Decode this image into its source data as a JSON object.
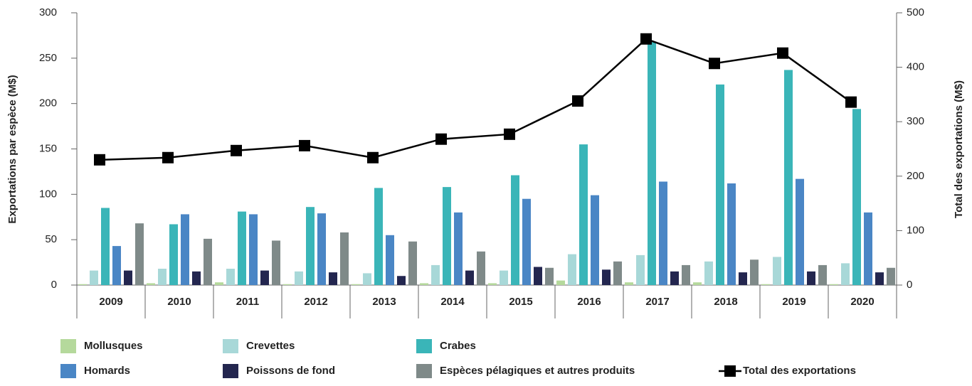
{
  "chart_data": {
    "type": "bar",
    "y_label": "Exportations par espèce (M$)",
    "y2_label": "Total des exportations (M$)",
    "categories": [
      "2009",
      "2010",
      "2011",
      "2012",
      "2013",
      "2014",
      "2015",
      "2016",
      "2017",
      "2018",
      "2019",
      "2020"
    ],
    "series": [
      {
        "name": "Mollusques",
        "color": "#b5d99c",
        "values": [
          1,
          2,
          3,
          1,
          1,
          2,
          2,
          5,
          3,
          3,
          1,
          1
        ]
      },
      {
        "name": "Crevettes",
        "color": "#a8d8d8",
        "values": [
          16,
          18,
          18,
          15,
          13,
          22,
          16,
          34,
          33,
          26,
          31,
          24
        ]
      },
      {
        "name": "Crabes",
        "color": "#3ab5b8",
        "values": [
          85,
          67,
          81,
          86,
          107,
          108,
          121,
          155,
          268,
          221,
          237,
          194
        ]
      },
      {
        "name": "Homards",
        "color": "#4a86c5",
        "values": [
          43,
          78,
          78,
          79,
          55,
          80,
          95,
          99,
          114,
          112,
          117,
          80
        ]
      },
      {
        "name": "Poissons de fond",
        "color": "#23264f",
        "values": [
          16,
          15,
          16,
          14,
          10,
          16,
          20,
          17,
          15,
          14,
          15,
          14
        ]
      },
      {
        "name": "Espèces pélagiques et autres produits",
        "color": "#7f8a89",
        "values": [
          68,
          51,
          49,
          58,
          48,
          37,
          19,
          26,
          22,
          28,
          22,
          19
        ]
      },
      {
        "name": "Total des exportations",
        "color": "#000000",
        "type": "line",
        "axis": "y2",
        "values": [
          230,
          234,
          247,
          256,
          234,
          268,
          277,
          338,
          452,
          407,
          426,
          336
        ]
      }
    ],
    "ylim": [
      0,
      300
    ],
    "yticks": [
      0,
      50,
      100,
      150,
      200,
      250,
      300
    ],
    "y2lim": [
      0,
      500
    ],
    "y2ticks": [
      0,
      100,
      200,
      300,
      400,
      500
    ]
  }
}
